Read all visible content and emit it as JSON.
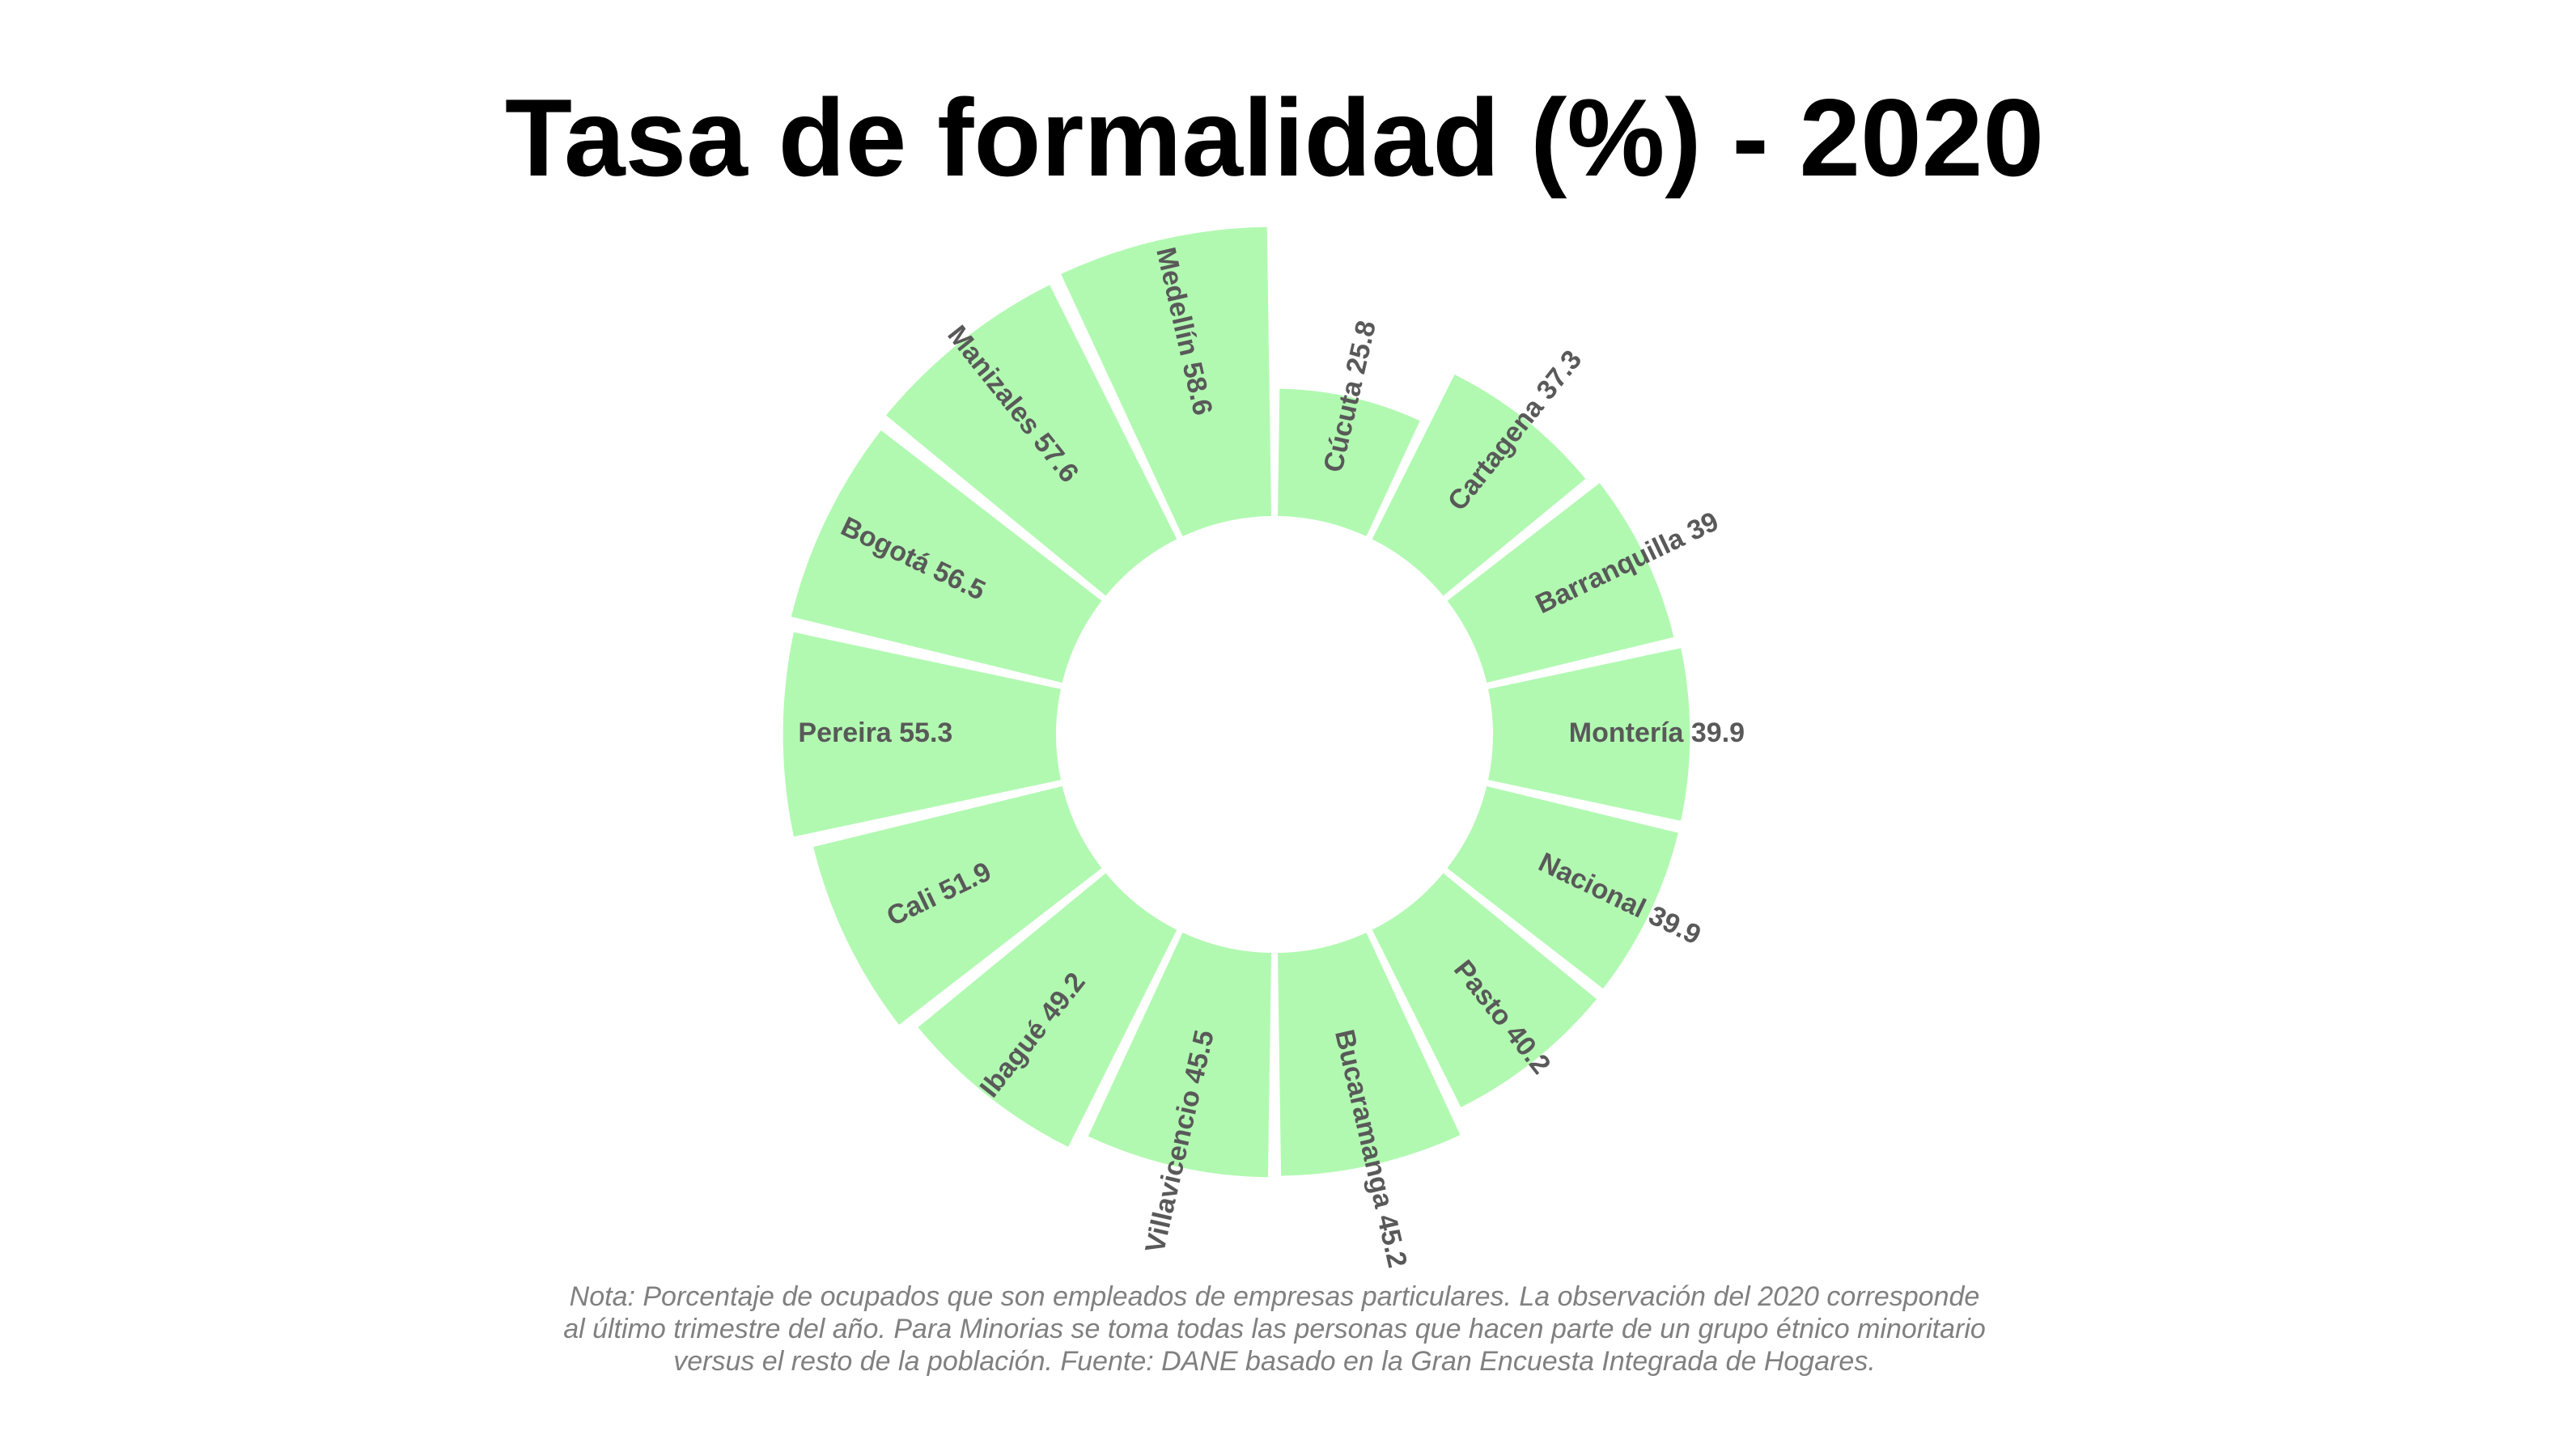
{
  "chart_data": {
    "type": "radial-bar",
    "title": "Tasa de formalidad (%) - 2020",
    "categories": [
      "Cúcuta",
      "Cartagena",
      "Barranquilla",
      "Montería",
      "Nacional",
      "Pasto",
      "Bucaramanga",
      "Villavicencio",
      "Ibagué",
      "Cali",
      "Pereira",
      "Bogotá",
      "Manizales",
      "Medellín"
    ],
    "values": [
      25.8,
      37.3,
      39,
      39.9,
      39.9,
      40.2,
      45.2,
      45.5,
      49.2,
      51.9,
      55.3,
      56.5,
      57.6,
      58.6
    ],
    "labels": [
      "Cúcuta 25.8",
      "Cartagena 37.3",
      "Barranquilla 39",
      "Montería 39.9",
      "Nacional 39.9",
      "Pasto 40.2",
      "Bucaramanga 45.2",
      "Villavicencio 45.5",
      "Ibagué 49.2",
      "Cali 51.9",
      "Pereira 55.3",
      "Bogotá 56.5",
      "Manizales 57.6",
      "Medellín 58.6"
    ],
    "colors": {
      "bar": "#b1f9b1",
      "label": "#595959"
    }
  },
  "note": "Nota: Porcentaje de ocupados que son empleados de empresas particulares. La observación del 2020 corresponde al último trimestre del año. Para Minorias se toma todas las personas que hacen parte de un grupo étnico minoritario versus el resto de la población. Fuente: DANE basado en la Gran Encuesta Integrada de Hogares."
}
